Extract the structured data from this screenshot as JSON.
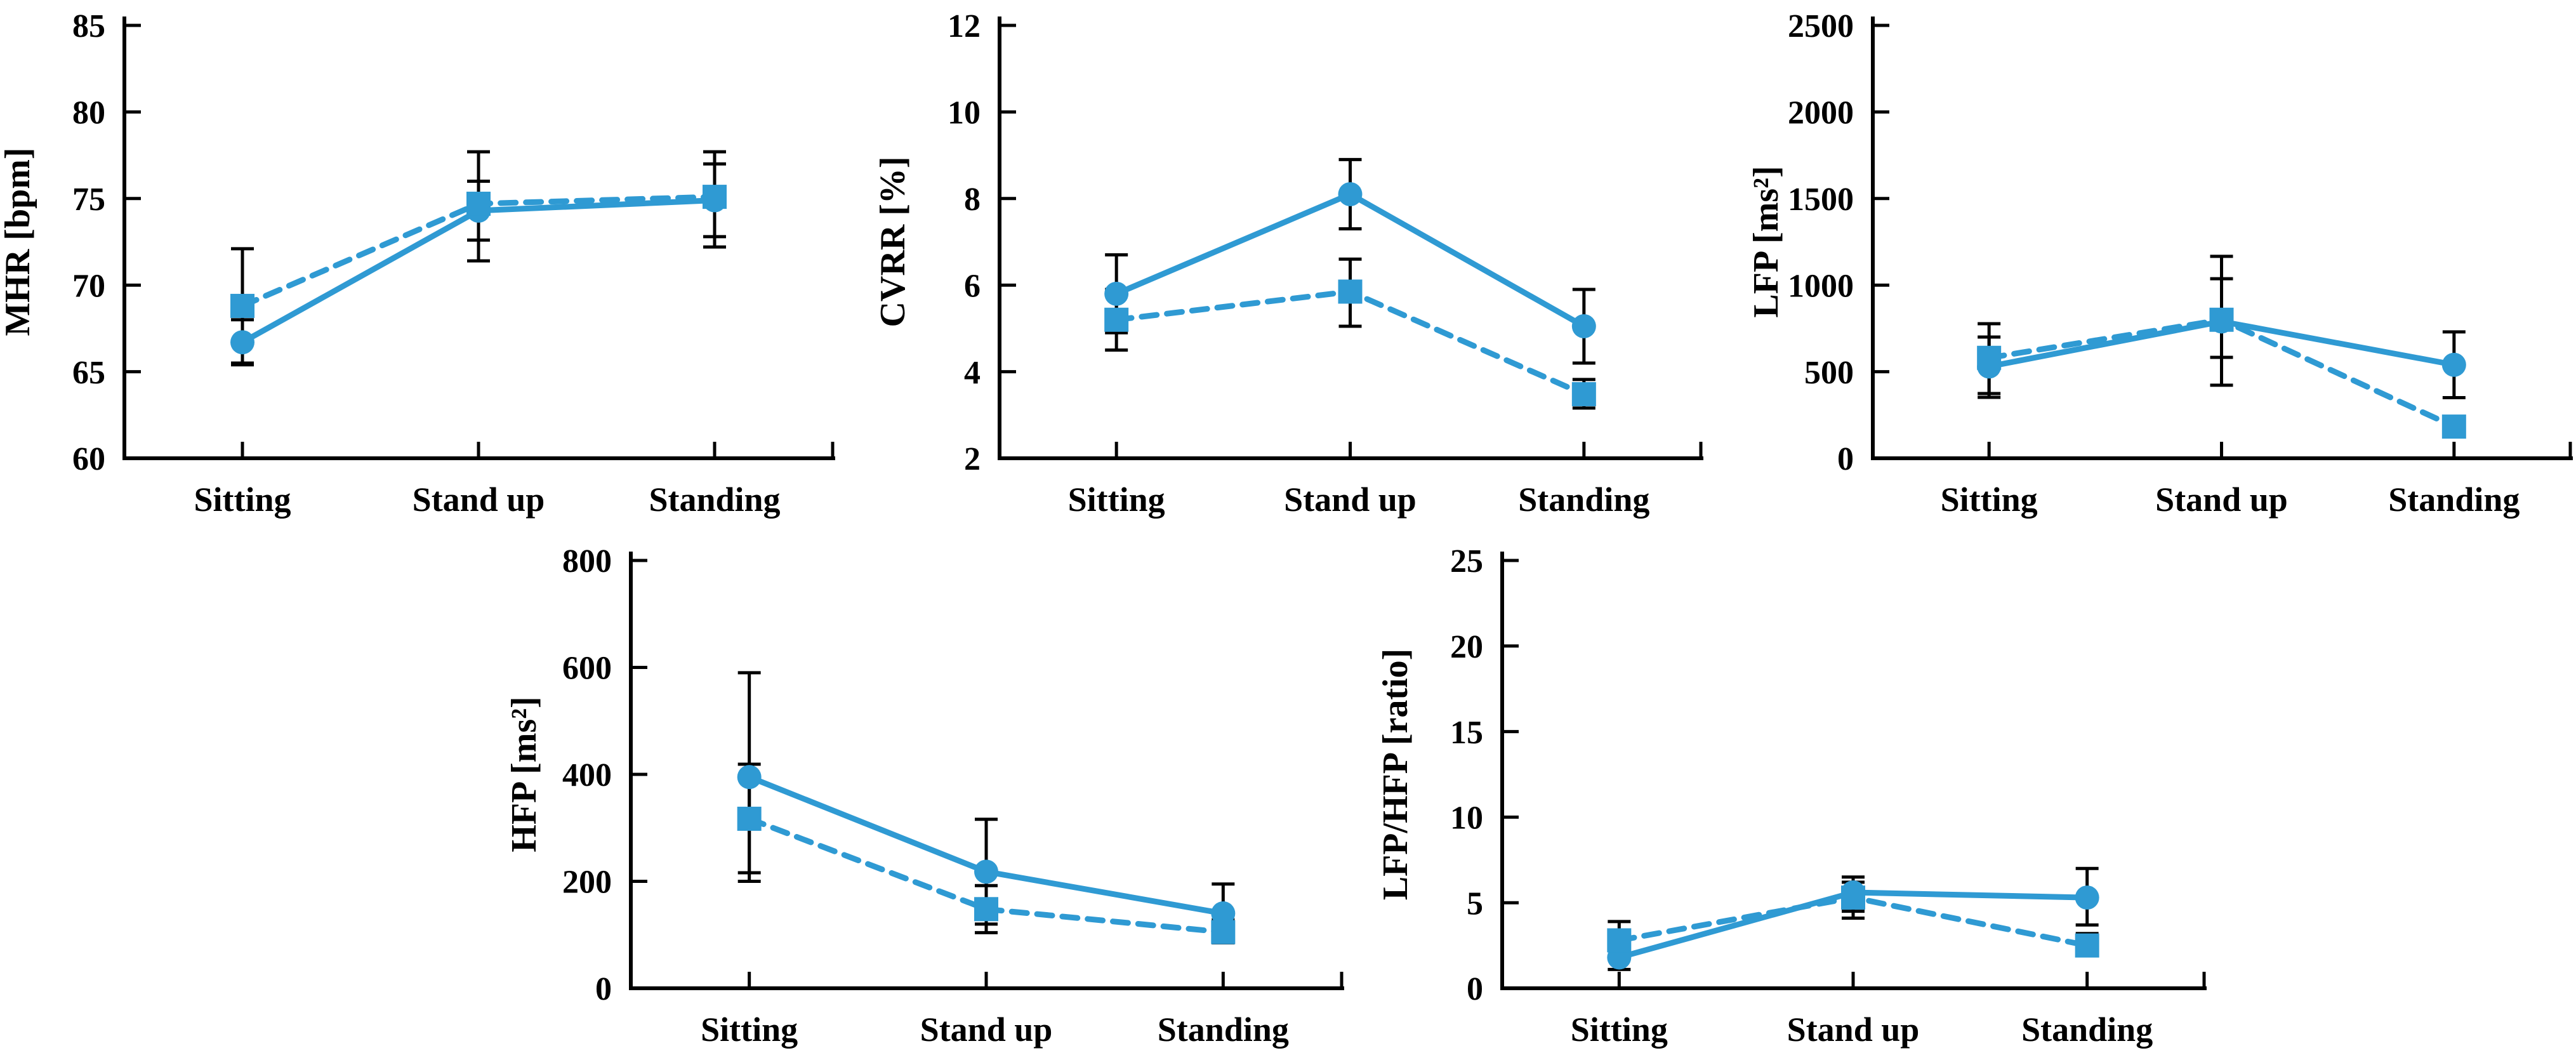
{
  "figure": {
    "description": "Five-panel line chart figure of heart-rate-variability measures across postures",
    "background": "#FFFFFF",
    "legend": "none",
    "grid": false
  },
  "colors": {
    "series_blue": "#2F9AD3",
    "error_bar": "#000000",
    "axis": "#000000",
    "text": "#000000",
    "background": "#FFFFFF"
  },
  "chart_data": [
    {
      "id": "mhr",
      "type": "line",
      "title": "",
      "xlabel": "",
      "ylabel": "MHR [bpm]",
      "categories": [
        "Sitting",
        "Stand up",
        "Standing"
      ],
      "ylim": [
        60,
        85
      ],
      "yticks": [
        60,
        65,
        70,
        75,
        80,
        85
      ],
      "grid": false,
      "legend": "none",
      "series": [
        {
          "name": "solid-circle",
          "marker": "circle",
          "line_style": "solid",
          "color": "#2F9AD3",
          "values": [
            66.7,
            74.3,
            74.9
          ],
          "err_low": [
            65.4,
            71.4,
            72.2
          ],
          "err_high": [
            68.0,
            76.0,
            77.0
          ]
        },
        {
          "name": "dashed-square",
          "marker": "square",
          "line_style": "dashed",
          "color": "#2F9AD3",
          "values": [
            68.8,
            74.7,
            75.1
          ],
          "err_low": [
            65.5,
            72.6,
            72.8
          ],
          "err_high": [
            72.1,
            77.7,
            77.7
          ]
        }
      ]
    },
    {
      "id": "cvrr",
      "type": "line",
      "title": "",
      "xlabel": "",
      "ylabel": "CVRR [%]",
      "categories": [
        "Sitting",
        "Stand up",
        "Standing"
      ],
      "ylim": [
        2,
        12
      ],
      "yticks": [
        2,
        4,
        6,
        8,
        10,
        12
      ],
      "grid": false,
      "legend": "none",
      "series": [
        {
          "name": "solid-circle",
          "marker": "circle",
          "line_style": "solid",
          "color": "#2F9AD3",
          "values": [
            5.8,
            8.1,
            5.05
          ],
          "err_low": [
            4.9,
            7.3,
            4.2
          ],
          "err_high": [
            6.7,
            8.9,
            5.9
          ]
        },
        {
          "name": "dashed-square",
          "marker": "square",
          "line_style": "dashed",
          "color": "#2F9AD3",
          "values": [
            5.2,
            5.85,
            3.48
          ],
          "err_low": [
            4.5,
            5.05,
            3.16
          ],
          "err_high": [
            5.9,
            6.6,
            3.82
          ]
        }
      ]
    },
    {
      "id": "lfp",
      "type": "line",
      "title": "",
      "xlabel": "",
      "ylabel": "LFP [ms²]",
      "categories": [
        "Sitting",
        "Stand up",
        "Standing"
      ],
      "ylim": [
        0,
        2500
      ],
      "yticks": [
        0,
        500,
        1000,
        1500,
        2000,
        2500
      ],
      "grid": false,
      "legend": "none",
      "series": [
        {
          "name": "solid-circle",
          "marker": "circle",
          "line_style": "solid",
          "color": "#2F9AD3",
          "values": [
            530,
            790,
            540
          ],
          "err_low": [
            352,
            422,
            350
          ],
          "err_high": [
            700,
            1166,
            730
          ]
        },
        {
          "name": "dashed-square",
          "marker": "square",
          "line_style": "dashed",
          "color": "#2F9AD3",
          "values": [
            580,
            800,
            183
          ],
          "err_low": [
            374,
            583,
            null
          ],
          "err_high": [
            777,
            1037,
            null
          ]
        }
      ]
    },
    {
      "id": "hfp",
      "type": "line",
      "title": "",
      "xlabel": "",
      "ylabel": "HFP [ms²]",
      "categories": [
        "Sitting",
        "Stand up",
        "Standing"
      ],
      "ylim": [
        0,
        800
      ],
      "yticks": [
        0,
        200,
        400,
        600,
        800
      ],
      "grid": false,
      "legend": "none",
      "series": [
        {
          "name": "solid-circle",
          "marker": "circle",
          "line_style": "solid",
          "color": "#2F9AD3",
          "values": [
            395,
            218,
            140
          ],
          "err_low": [
            200,
            120,
            98
          ],
          "err_high": [
            590,
            316,
            195
          ]
        },
        {
          "name": "dashed-square",
          "marker": "square",
          "line_style": "dashed",
          "color": "#2F9AD3",
          "values": [
            317,
            148,
            105
          ],
          "err_low": [
            216,
            104,
            85
          ],
          "err_high": [
            419,
            192,
            128
          ]
        }
      ]
    },
    {
      "id": "lfp-hfp",
      "type": "line",
      "title": "",
      "xlabel": "",
      "ylabel": "LFP/HFP [ratio]",
      "categories": [
        "Sitting",
        "Stand up",
        "Standing"
      ],
      "ylim": [
        0,
        25
      ],
      "yticks": [
        0,
        5,
        10,
        15,
        20,
        25
      ],
      "grid": false,
      "legend": "none",
      "series": [
        {
          "name": "solid-circle",
          "marker": "circle",
          "line_style": "solid",
          "color": "#2F9AD3",
          "values": [
            1.8,
            5.6,
            5.3
          ],
          "err_low": [
            1.1,
            4.5,
            3.7
          ],
          "err_high": [
            2.5,
            6.5,
            7.0
          ]
        },
        {
          "name": "dashed-square",
          "marker": "square",
          "line_style": "dashed",
          "color": "#2F9AD3",
          "values": [
            2.8,
            5.3,
            2.5
          ],
          "err_low": [
            1.7,
            4.1,
            1.9
          ],
          "err_high": [
            3.9,
            6.2,
            3.2
          ]
        }
      ]
    }
  ]
}
